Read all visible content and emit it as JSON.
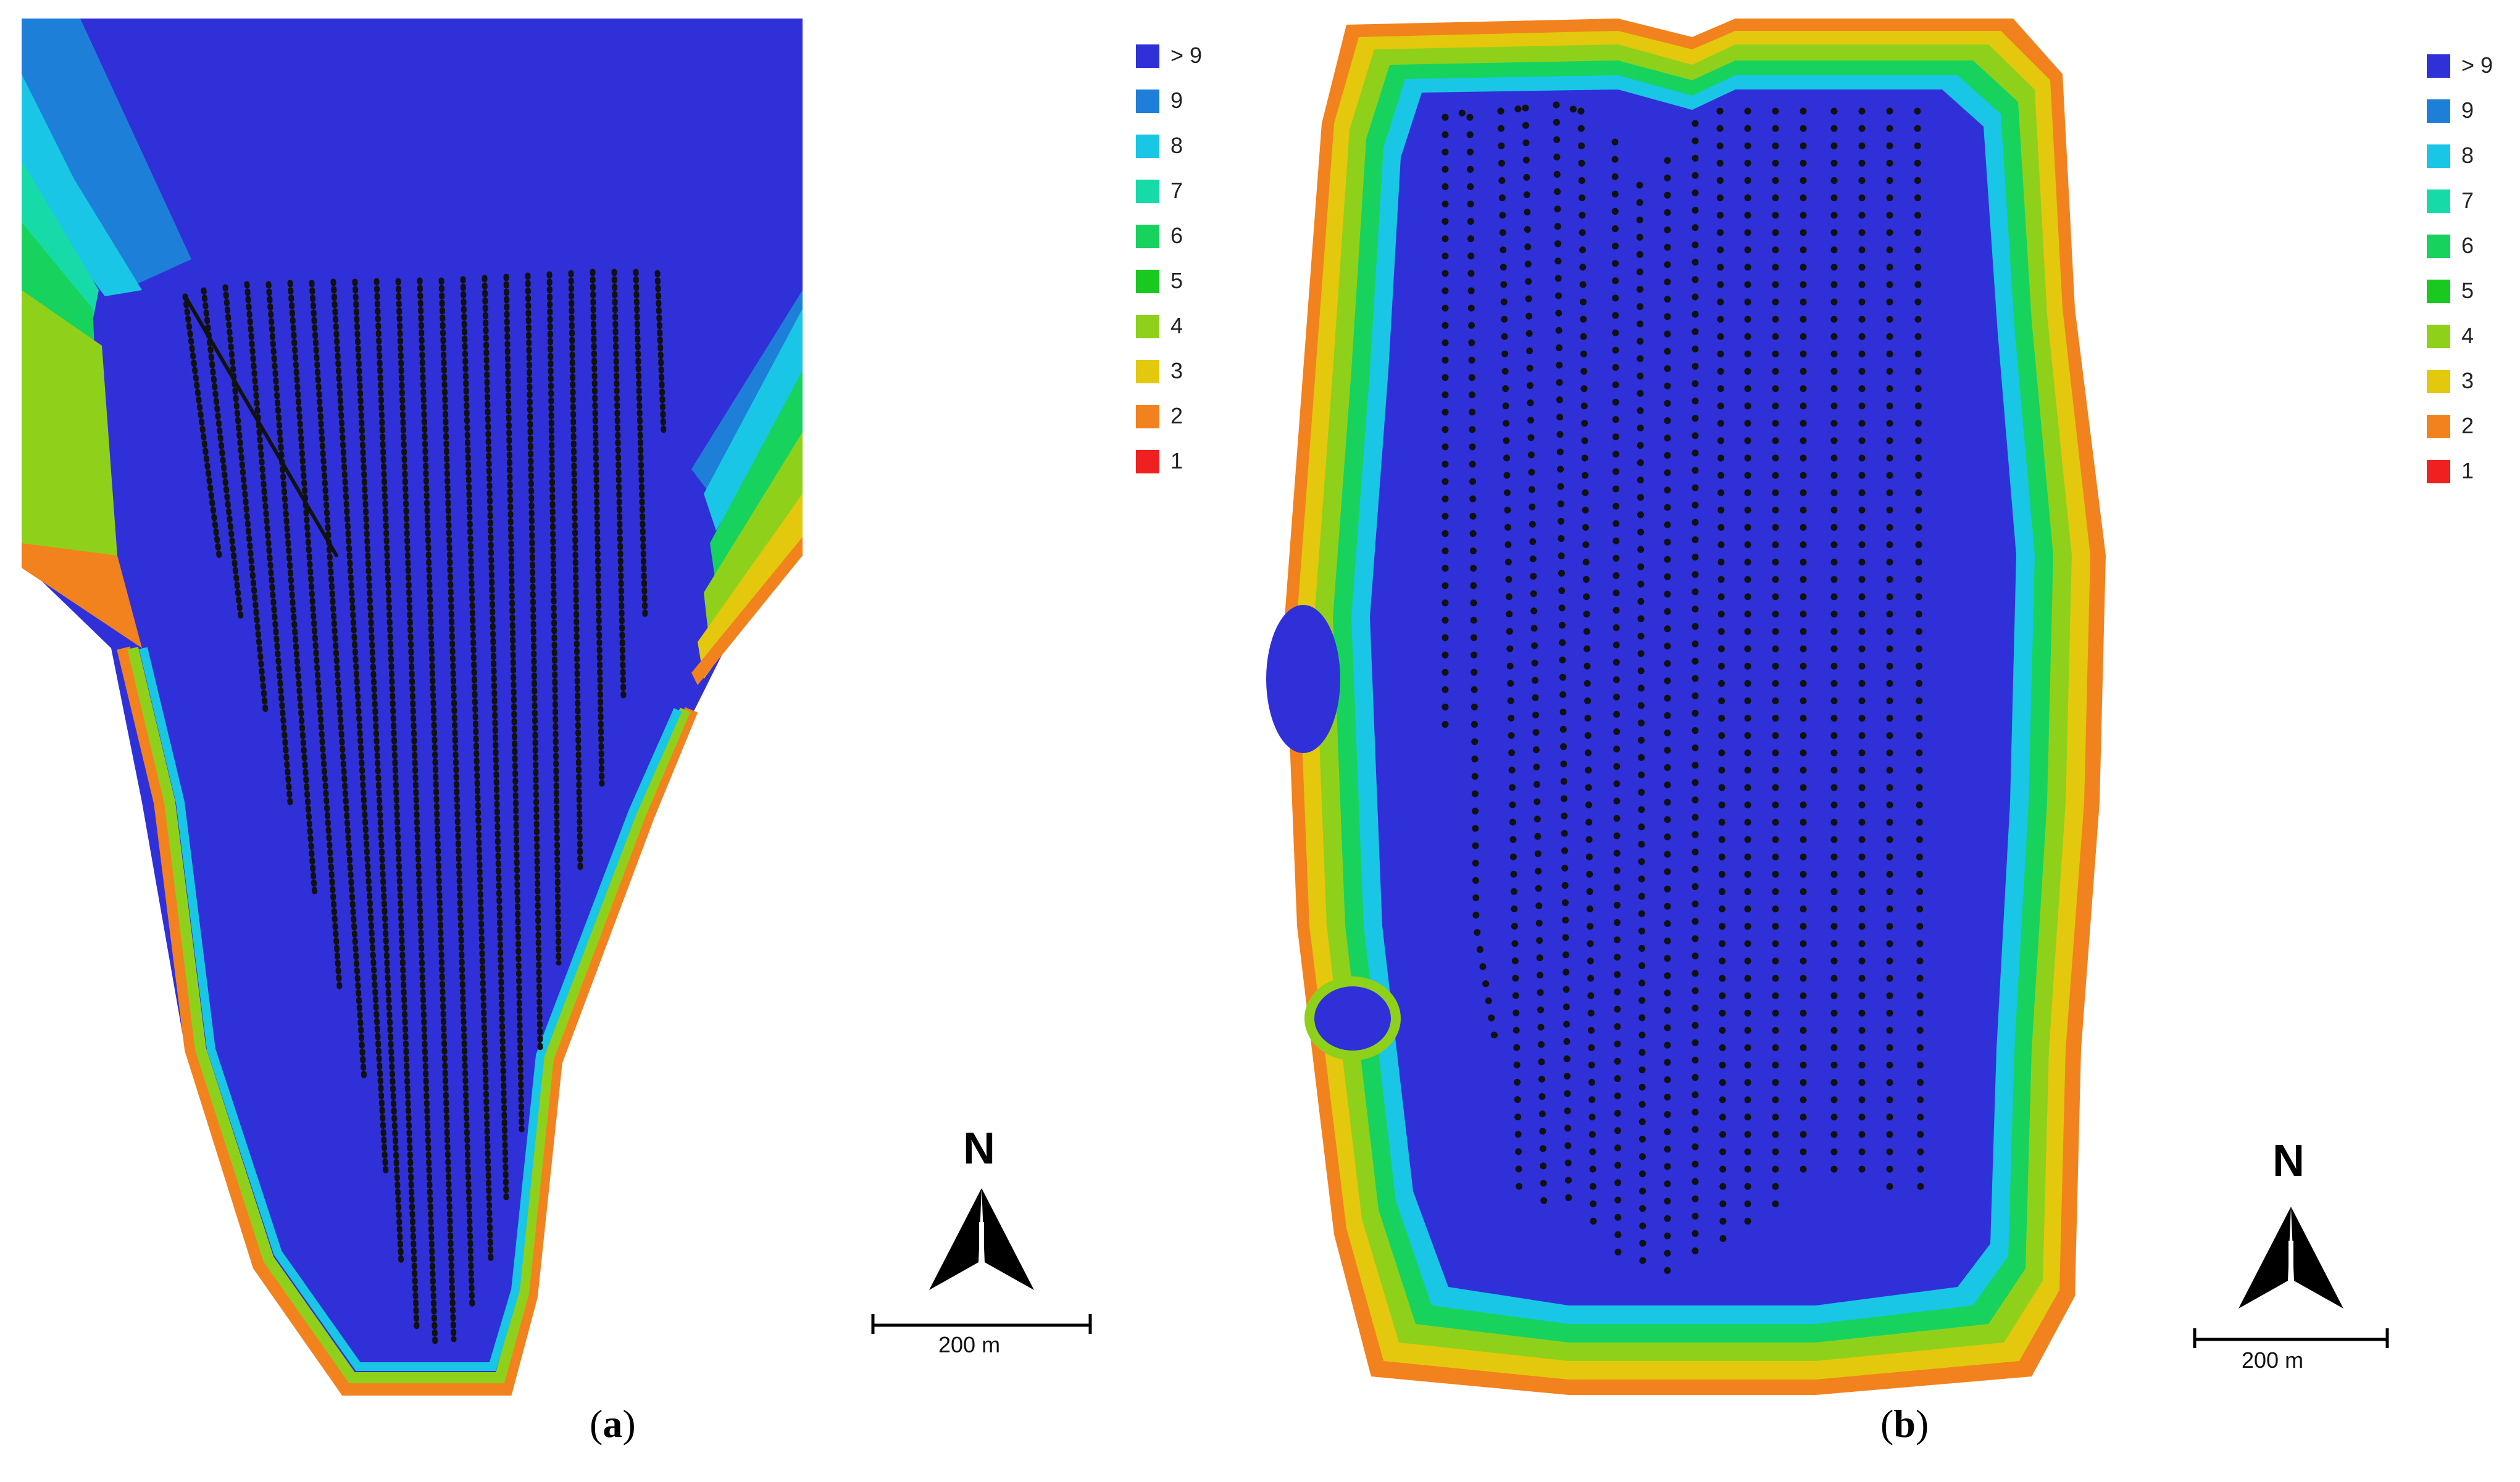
{
  "legend_colors": {
    ">9": "#3030d8",
    "9": "#1e7fd8",
    "8": "#19c6e6",
    "7": "#16dba8",
    "6": "#17d35e",
    "5": "#19c91f",
    "4": "#8fd11a",
    "3": "#e3c80e",
    "2": "#f2821e",
    "1": "#ee2020"
  },
  "panels": [
    {
      "id": "a",
      "caption_open": "(",
      "caption_letter": "a",
      "caption_close": ")",
      "legend": [
        {
          "label": "> 9",
          "color": "#3030d8"
        },
        {
          "label": "9",
          "color": "#1e7fd8"
        },
        {
          "label": "8",
          "color": "#19c6e6"
        },
        {
          "label": "7",
          "color": "#16dba8"
        },
        {
          "label": "6",
          "color": "#17d35e"
        },
        {
          "label": "5",
          "color": "#19c91f"
        },
        {
          "label": "4",
          "color": "#8fd11a"
        },
        {
          "label": "3",
          "color": "#e3c80e"
        },
        {
          "label": "2",
          "color": "#f2821e"
        },
        {
          "label": "1",
          "color": "#ee2020"
        }
      ],
      "north_label": "N",
      "scale_label": "200 m"
    },
    {
      "id": "b",
      "caption_open": "(",
      "caption_letter": "b",
      "caption_close": ")",
      "legend": [
        {
          "label": "> 9",
          "color": "#3030d8"
        },
        {
          "label": "9",
          "color": "#1e7fd8"
        },
        {
          "label": "8",
          "color": "#19c6e6"
        },
        {
          "label": "7",
          "color": "#16dba8"
        },
        {
          "label": "6",
          "color": "#17d35e"
        },
        {
          "label": "5",
          "color": "#19c91f"
        },
        {
          "label": "4",
          "color": "#8fd11a"
        },
        {
          "label": "3",
          "color": "#e3c80e"
        },
        {
          "label": "2",
          "color": "#f2821e"
        },
        {
          "label": "1",
          "color": "#ee2020"
        }
      ],
      "north_label": "N",
      "scale_label": "200 m"
    }
  ]
}
